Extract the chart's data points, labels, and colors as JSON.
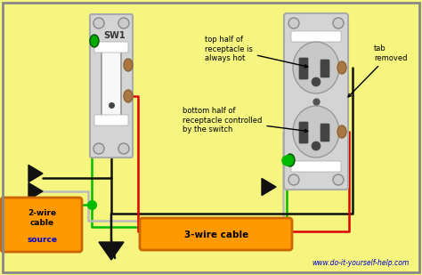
{
  "bg_color": "#f5f580",
  "border_color": "#888888",
  "title_text": "www.do-it-yourself-help.com",
  "wire_colors": {
    "black": "#111111",
    "white": "#bbbbbb",
    "green": "#00bb00",
    "red": "#dd0000"
  },
  "sw_label": "SW1",
  "cable2_label1": "2-wire\ncable",
  "cable2_label2": "source",
  "cable3_label": "3-wire cable",
  "label_top": "top half of\nreceptacle is\nalways hot",
  "label_bottom": "bottom half of\nreceptacle controlled\nby the switch",
  "label_tab": "tab\nremoved"
}
